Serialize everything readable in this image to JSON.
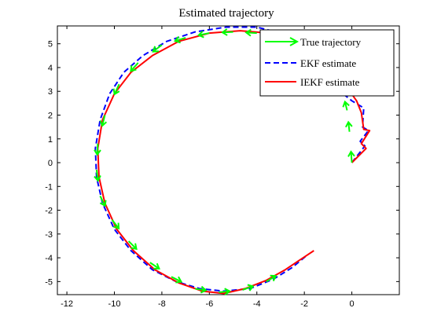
{
  "chart_data": {
    "type": "line",
    "title": "Estimated trajectory",
    "xlabel": "",
    "ylabel": "",
    "xlim": [
      -12.4,
      2.0
    ],
    "ylim": [
      -5.55,
      5.75
    ],
    "xticks": [
      -12,
      -10,
      -8,
      -6,
      -4,
      -2,
      0
    ],
    "yticks": [
      -5,
      -4,
      -3,
      -2,
      -1,
      0,
      1,
      2,
      3,
      4,
      5
    ],
    "xtick_labels": [
      "-12",
      "-10",
      "-8",
      "-6",
      "-4",
      "-2",
      "0"
    ],
    "ytick_labels": [
      "-5",
      "-4",
      "-3",
      "-2",
      "-1",
      "0",
      "1",
      "2",
      "3",
      "4",
      "5"
    ],
    "grid": false,
    "legend_position": "top-right",
    "series": [
      {
        "name": "True trajectory",
        "style": "arrows",
        "color": "#00ff00",
        "x": [
          0.0,
          -0.1,
          -0.2,
          -0.4,
          -3.0,
          -4.0,
          -5.0,
          -6.0,
          -7.0,
          -8.0,
          -9.0,
          -9.8,
          -10.4,
          -10.7,
          -10.75,
          -10.6,
          -10.1,
          -9.4,
          -8.5,
          -7.6,
          -6.6,
          -5.6,
          -4.6,
          -3.6,
          -2.6
        ],
        "y": [
          0.0,
          1.3,
          2.2,
          3.0,
          5.2,
          5.45,
          5.5,
          5.45,
          5.25,
          4.95,
          4.2,
          3.3,
          2.0,
          0.8,
          -0.3,
          -1.4,
          -2.4,
          -3.3,
          -4.2,
          -4.8,
          -5.3,
          -5.45,
          -5.35,
          -5.0,
          -4.4
        ]
      },
      {
        "name": "EKF estimate",
        "style": "dashed",
        "color": "#0000ff",
        "x": [
          0.0,
          0.55,
          0.35,
          0.7,
          0.45,
          0.5,
          0.0,
          -0.5,
          -1.0,
          -1.8,
          -2.8,
          -4.0,
          -5.3,
          -6.6,
          -7.8,
          -8.8,
          -9.6,
          -10.2,
          -10.6,
          -10.8,
          -10.75,
          -10.5,
          -10.0,
          -9.3,
          -8.4,
          -7.4,
          -6.4,
          -5.4,
          -4.3,
          -3.3,
          -2.5,
          -1.9
        ],
        "y": [
          0.0,
          0.7,
          0.9,
          1.35,
          1.5,
          2.3,
          2.6,
          3.0,
          3.9,
          4.8,
          5.4,
          5.7,
          5.7,
          5.5,
          5.1,
          4.5,
          3.8,
          2.9,
          1.8,
          0.6,
          -0.6,
          -1.7,
          -2.8,
          -3.7,
          -4.5,
          -5.0,
          -5.3,
          -5.4,
          -5.3,
          -4.9,
          -4.4,
          -3.9
        ]
      },
      {
        "name": "IEKF estimate",
        "style": "solid",
        "color": "#ff0000",
        "x": [
          0.0,
          0.6,
          0.4,
          0.75,
          0.5,
          0.4,
          0.2,
          -0.3,
          -1.2,
          -2.3,
          -3.5,
          -4.7,
          -6.0,
          -7.3,
          -8.4,
          -9.3,
          -10.0,
          -10.5,
          -10.7,
          -10.65,
          -10.4,
          -9.9,
          -9.2,
          -8.3,
          -7.3,
          -6.3,
          -5.4,
          -4.5,
          -3.6,
          -2.8,
          -2.2,
          -1.6
        ],
        "y": [
          0.0,
          0.6,
          0.8,
          1.35,
          1.4,
          2.1,
          2.6,
          3.3,
          4.4,
          5.1,
          5.45,
          5.55,
          5.45,
          5.1,
          4.5,
          3.8,
          2.9,
          1.8,
          0.6,
          -0.6,
          -1.7,
          -2.8,
          -3.7,
          -4.5,
          -5.05,
          -5.4,
          -5.5,
          -5.3,
          -4.95,
          -4.5,
          -4.1,
          -3.7
        ]
      }
    ]
  }
}
